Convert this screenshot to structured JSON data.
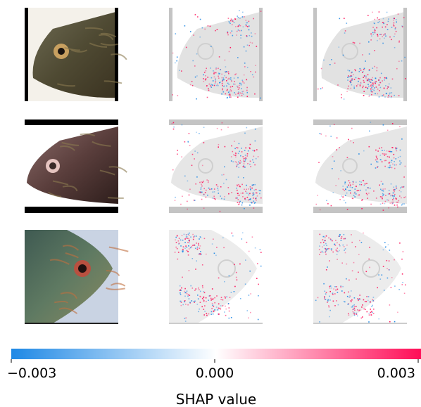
{
  "chart_data": {
    "type": "heatmap",
    "title": "",
    "grid": {
      "rows": 3,
      "columns": 3
    },
    "columns": [
      {
        "kind": "original-image"
      },
      {
        "kind": "shap-overlay"
      },
      {
        "kind": "shap-overlay"
      }
    ],
    "rows": [
      {
        "crop": "black-bars-left-right",
        "pixel_spread": 0.35,
        "hotspots": [
          [
            0.75,
            0.2
          ],
          [
            0.5,
            0.75
          ],
          [
            0.7,
            0.85
          ]
        ]
      },
      {
        "crop": "black-bars-top-bottom",
        "pixel_spread": 0.3,
        "hotspots": [
          [
            0.8,
            0.4
          ],
          [
            0.45,
            0.75
          ],
          [
            0.85,
            0.8
          ]
        ]
      },
      {
        "crop": "none",
        "pixel_spread": 0.5,
        "hotspots": [
          [
            0.2,
            0.15
          ],
          [
            0.25,
            0.7
          ],
          [
            0.5,
            0.8
          ]
        ]
      }
    ],
    "colorbar": {
      "label": "SHAP value",
      "range": [
        -0.003,
        0.003
      ],
      "ticks": [
        -0.003,
        0.0,
        0.003
      ],
      "tick_labels": [
        "−0.003",
        "0.000",
        "0.003"
      ],
      "colors": {
        "negative": "#1e88e5",
        "zero": "#ffffff",
        "positive": "#ff0d57"
      }
    }
  }
}
